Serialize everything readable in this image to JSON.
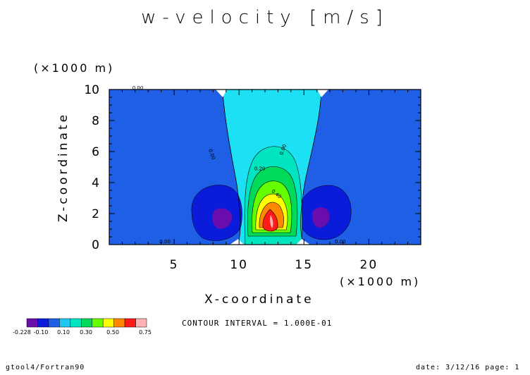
{
  "chart_data": {
    "type": "contour",
    "title": "w-velocity [m/s]",
    "xlabel": "X-coordinate",
    "ylabel": "Z-coordinate",
    "x_multiplier": "(×1000 m)",
    "y_multiplier": "(×1000 m)",
    "xlim": [
      0,
      24
    ],
    "ylim": [
      0,
      10
    ],
    "x_ticks": [
      "5",
      "10",
      "15",
      "20"
    ],
    "y_ticks": [
      "0",
      "2",
      "4",
      "6",
      "8",
      "10"
    ],
    "contour_interval_text": "CONTOUR INTERVAL = 1.000E-01",
    "contour_labels": [
      "0.00",
      "0.00",
      "0.00",
      "0.00",
      "0.00",
      "0.20",
      "0.40"
    ],
    "colorbar": {
      "labels": [
        "-0.228",
        "-0.10",
        "0.10",
        "0.30",
        "0.50",
        "0.75"
      ],
      "colors": [
        "#6a0dad",
        "#0a1bd9",
        "#1e5fe6",
        "#1ec8f0",
        "#00e5c0",
        "#00d95a",
        "#66ff00",
        "#ffff00",
        "#ff8800",
        "#ff1a1a",
        "#ffb3b3"
      ]
    },
    "field_summary": {
      "updraft_center_x": 12.5,
      "updraft_center_z": 1.7,
      "updraft_max": 0.75,
      "downdraft_centers_x": [
        8.5,
        16.5
      ],
      "downdraft_center_z": 1.8,
      "downdraft_min": -0.228
    }
  },
  "footer": {
    "left": "gtool4/Fortran90",
    "right": "date: 3/12/16 page: 1"
  }
}
